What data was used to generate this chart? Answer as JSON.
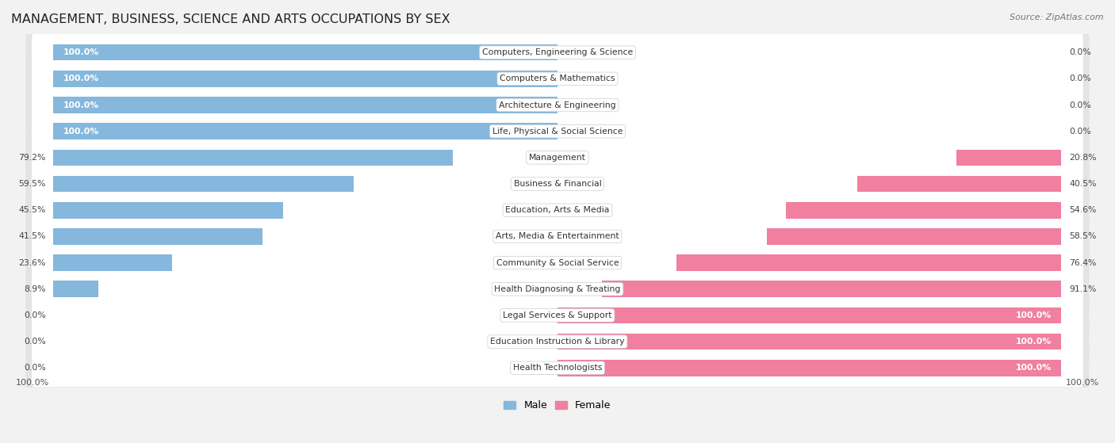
{
  "title": "MANAGEMENT, BUSINESS, SCIENCE AND ARTS OCCUPATIONS BY SEX",
  "source": "Source: ZipAtlas.com",
  "categories": [
    "Computers, Engineering & Science",
    "Computers & Mathematics",
    "Architecture & Engineering",
    "Life, Physical & Social Science",
    "Management",
    "Business & Financial",
    "Education, Arts & Media",
    "Arts, Media & Entertainment",
    "Community & Social Service",
    "Health Diagnosing & Treating",
    "Legal Services & Support",
    "Education Instruction & Library",
    "Health Technologists"
  ],
  "male": [
    100.0,
    100.0,
    100.0,
    100.0,
    79.2,
    59.5,
    45.5,
    41.5,
    23.6,
    8.9,
    0.0,
    0.0,
    0.0
  ],
  "female": [
    0.0,
    0.0,
    0.0,
    0.0,
    20.8,
    40.5,
    54.6,
    58.5,
    76.4,
    91.1,
    100.0,
    100.0,
    100.0
  ],
  "male_color": "#85b8dc",
  "female_color": "#f07fa0",
  "bg_color": "#f2f2f2",
  "row_bg_color": "#e4e4e4",
  "row_inner_color": "#ffffff",
  "title_fontsize": 11.5,
  "label_fontsize": 7.8,
  "bar_height": 0.62,
  "axis_half": 100
}
